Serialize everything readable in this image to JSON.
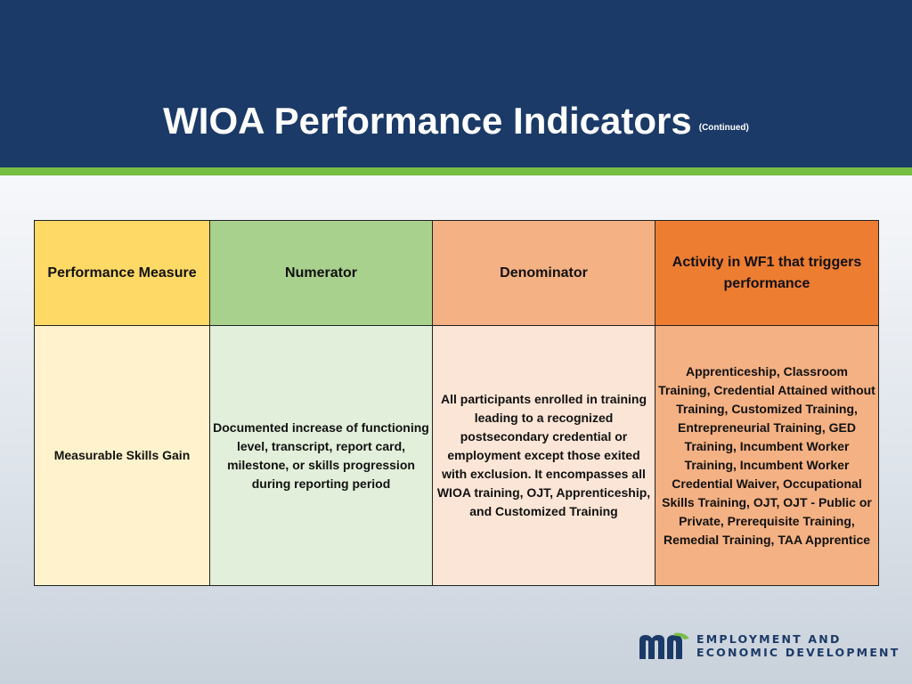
{
  "slide": {
    "title": "WIOA Performance Indicators",
    "title_suffix": "(Continued)"
  },
  "table": {
    "headers": [
      "Performance Measure",
      "Numerator",
      "Denominator",
      "Activity in WF1 that triggers performance"
    ],
    "rows": [
      {
        "measure": "Measurable Skills Gain",
        "numerator": "Documented increase of functioning level, transcript, report card, milestone, or skills progression during reporting period",
        "denominator": "All participants enrolled in training leading to a recognized postsecondary credential or employment except those exited with exclusion.  It encompasses all WIOA training, OJT, Apprenticeship, and Customized Training",
        "activity": "Apprenticeship, Classroom Training, Credential Attained without Training, Customized Training, Entrepreneurial Training, GED Training, Incumbent Worker Training, Incumbent Worker Credential Waiver, Occupational Skills Training, OJT, OJT - Public or Private, Prerequisite Training, Remedial Training, TAA Apprentice"
      }
    ]
  },
  "logo": {
    "line1": "EMPLOYMENT AND",
    "line2": "ECONOMIC DEVELOPMENT",
    "colors": {
      "navy": "#1b3a67",
      "green": "#78be43"
    }
  },
  "colors": {
    "header_bg": "#1b3a67",
    "header_stripe": "#78be43"
  }
}
